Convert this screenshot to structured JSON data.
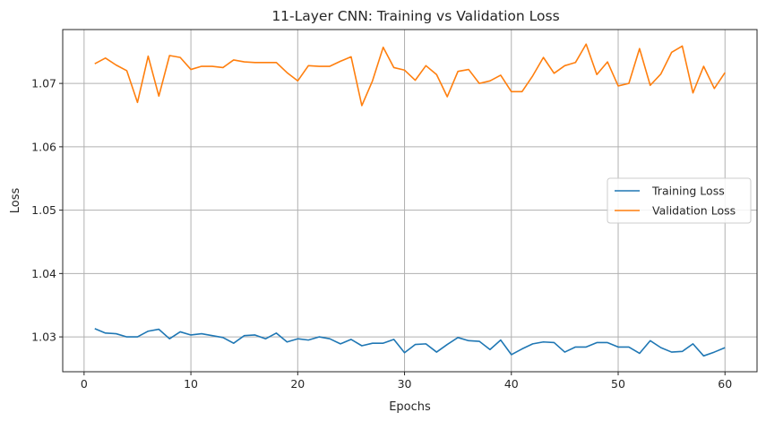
{
  "chart_data": {
    "type": "line",
    "title": "11-Layer CNN: Training vs Validation Loss",
    "xlabel": "Epochs",
    "ylabel": "Loss",
    "xlim": [
      -2,
      63
    ],
    "ylim": [
      1.0245,
      1.0785
    ],
    "x_ticks": [
      0,
      10,
      20,
      30,
      40,
      50,
      60
    ],
    "y_ticks": [
      1.03,
      1.04,
      1.05,
      1.06,
      1.07
    ],
    "y_tick_labels": [
      "1.03",
      "1.04",
      "1.05",
      "1.06",
      "1.07"
    ],
    "grid": true,
    "legend_position": "center-right",
    "x": [
      1,
      2,
      3,
      4,
      5,
      6,
      7,
      8,
      9,
      10,
      11,
      12,
      13,
      14,
      15,
      16,
      17,
      18,
      19,
      20,
      21,
      22,
      23,
      24,
      25,
      26,
      27,
      28,
      29,
      30,
      31,
      32,
      33,
      34,
      35,
      36,
      37,
      38,
      39,
      40,
      41,
      42,
      43,
      44,
      45,
      46,
      47,
      48,
      49,
      50,
      51,
      52,
      53,
      54,
      55,
      56,
      57,
      58,
      59,
      60
    ],
    "series": [
      {
        "name": "Training Loss",
        "color": "#1f77b4",
        "values": [
          1.0313,
          1.0306,
          1.0305,
          1.03,
          1.03,
          1.0309,
          1.0312,
          1.0297,
          1.0308,
          1.0303,
          1.0305,
          1.0302,
          1.0299,
          1.029,
          1.0302,
          1.0303,
          1.0297,
          1.0306,
          1.0292,
          1.0297,
          1.0295,
          1.03,
          1.0297,
          1.0289,
          1.0296,
          1.0286,
          1.029,
          1.029,
          1.0296,
          1.0275,
          1.0288,
          1.0289,
          1.0276,
          1.0288,
          1.0299,
          1.0294,
          1.0293,
          1.028,
          1.0295,
          1.0272,
          1.0281,
          1.0289,
          1.0292,
          1.0291,
          1.0276,
          1.0284,
          1.0284,
          1.0291,
          1.0291,
          1.0284,
          1.0284,
          1.0274,
          1.0294,
          1.0283,
          1.0276,
          1.0277,
          1.0289,
          1.027,
          1.0276,
          1.0283
        ]
      },
      {
        "name": "Validation Loss",
        "color": "#ff7f0e",
        "values": [
          1.0731,
          1.074,
          1.0729,
          1.072,
          1.067,
          1.0743,
          1.068,
          1.0744,
          1.0741,
          1.0722,
          1.0727,
          1.0727,
          1.0725,
          1.0737,
          1.0734,
          1.0733,
          1.0733,
          1.0733,
          1.0717,
          1.0704,
          1.0728,
          1.0727,
          1.0727,
          1.0735,
          1.0742,
          1.0665,
          1.0704,
          1.0757,
          1.0725,
          1.0721,
          1.0705,
          1.0728,
          1.0714,
          1.0679,
          1.0719,
          1.0722,
          1.07,
          1.0704,
          1.0713,
          1.0687,
          1.0687,
          1.0712,
          1.0741,
          1.0716,
          1.0728,
          1.0733,
          1.0762,
          1.0714,
          1.0734,
          1.0696,
          1.07,
          1.0755,
          1.0697,
          1.0715,
          1.0749,
          1.0759,
          1.0685,
          1.0727,
          1.0692,
          1.0717
        ]
      }
    ]
  }
}
